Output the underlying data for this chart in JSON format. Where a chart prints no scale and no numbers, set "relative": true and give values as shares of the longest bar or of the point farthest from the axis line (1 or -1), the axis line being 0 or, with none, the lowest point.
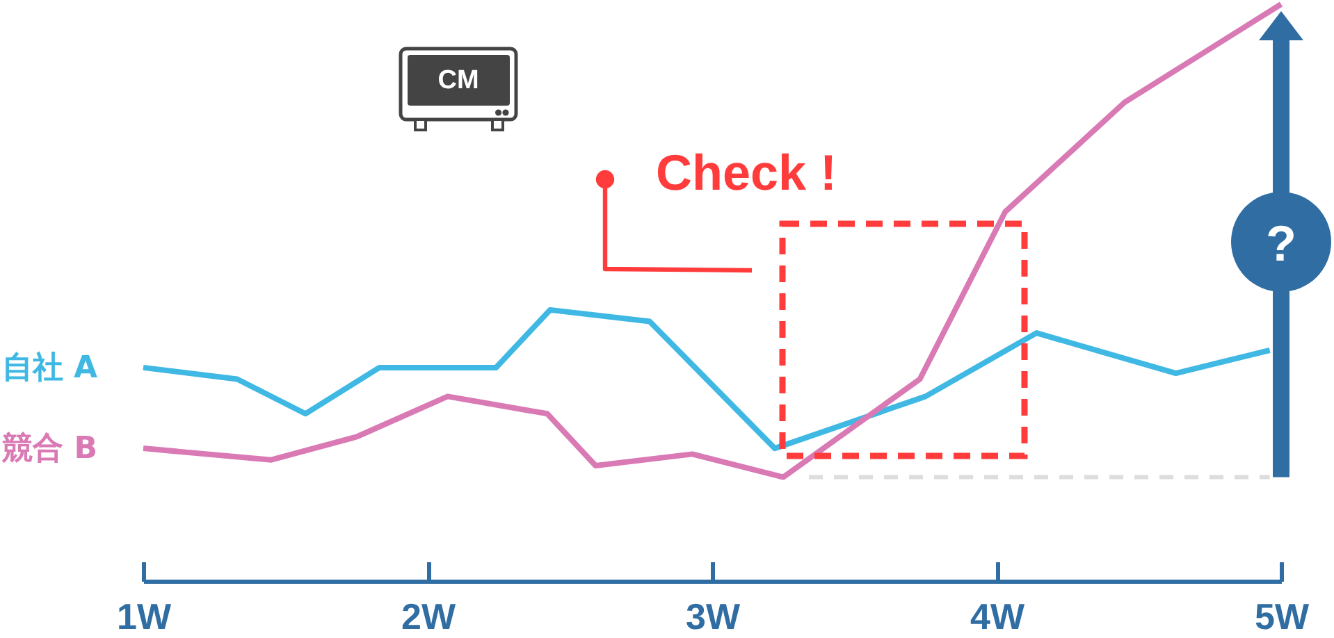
{
  "chart_data": {
    "type": "line",
    "relative": true,
    "xlim": [
      1,
      5
    ],
    "xticks": [
      {
        "value": 1,
        "label": "1W"
      },
      {
        "value": 2,
        "label": "2W"
      },
      {
        "value": 3,
        "label": "3W"
      },
      {
        "value": 4,
        "label": "4W"
      },
      {
        "value": 5,
        "label": "5W"
      }
    ],
    "series": [
      {
        "name": "自社 A",
        "color": "#3fb8e4",
        "x": [
          1,
          1.33,
          1.57,
          1.83,
          2.24,
          2.43,
          2.78,
          3.22,
          3.75,
          4.14,
          4.63,
          4.96
        ],
        "values": [
          0.37,
          0.35,
          0.29,
          0.37,
          0.37,
          0.47,
          0.45,
          0.23,
          0.32,
          0.43,
          0.36,
          0.4
        ]
      },
      {
        "name": "競合 B",
        "color": "#d97ab5",
        "x": [
          1,
          1.45,
          1.75,
          2.07,
          2.42,
          2.59,
          2.93,
          3.25,
          3.73,
          4.03,
          4.45,
          5
        ],
        "values": [
          0.23,
          0.21,
          0.25,
          0.32,
          0.29,
          0.2,
          0.22,
          0.18,
          0.35,
          0.64,
          0.83,
          1
        ]
      },
      {
        "color": "#dddddd",
        "line_style": "dashed",
        "x": [
          3.34,
          4.96
        ],
        "values": [
          0.18,
          0.18
        ]
      }
    ],
    "annotations": [
      "CM",
      "Check !",
      "?"
    ]
  }
}
